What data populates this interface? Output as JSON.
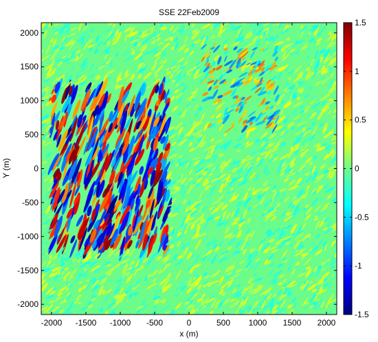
{
  "chart_data": {
    "type": "heatmap",
    "title": "SSE 22Feb2009",
    "xlabel": "x (m)",
    "ylabel": "Y (m)",
    "xlim": [
      -2150,
      2150
    ],
    "ylim": [
      -2150,
      2150
    ],
    "x_ticks": [
      -2000,
      -1500,
      -1000,
      -500,
      0,
      500,
      1000,
      1500,
      2000
    ],
    "x_tick_labels": [
      "-2000",
      "-1500",
      "-1000",
      "-500",
      "0",
      "500",
      "1000",
      "1500",
      "2000"
    ],
    "y_ticks": [
      2000,
      1500,
      1000,
      500,
      0,
      -500,
      -1000,
      -1500,
      -2000
    ],
    "y_tick_labels": [
      "2000",
      "1500",
      "1000",
      "500",
      "0",
      "-500",
      "-1000",
      "-1500",
      "-2000"
    ],
    "colorbar": {
      "colormap": "jet",
      "clim": [
        -1.5,
        1.5
      ],
      "ticks": [
        1.5,
        1,
        0.5,
        0,
        -0.5,
        -1,
        -1.5
      ],
      "tick_labels": [
        "1.5",
        "1",
        "0.5",
        "0",
        "-0.5",
        "-1",
        "-1.5"
      ]
    },
    "field_description": {
      "background_value": 0,
      "high_amplitude_region": {
        "x_range": [
          -2000,
          -300
        ],
        "y_range": [
          -1200,
          1200
        ],
        "amplitude": 1.5
      },
      "secondary_region": {
        "x_range": [
          200,
          1300
        ],
        "y_range": [
          500,
          1800
        ],
        "amplitude": 0.9
      },
      "low_amplitude_elsewhere": 0.35
    },
    "grid": false
  }
}
